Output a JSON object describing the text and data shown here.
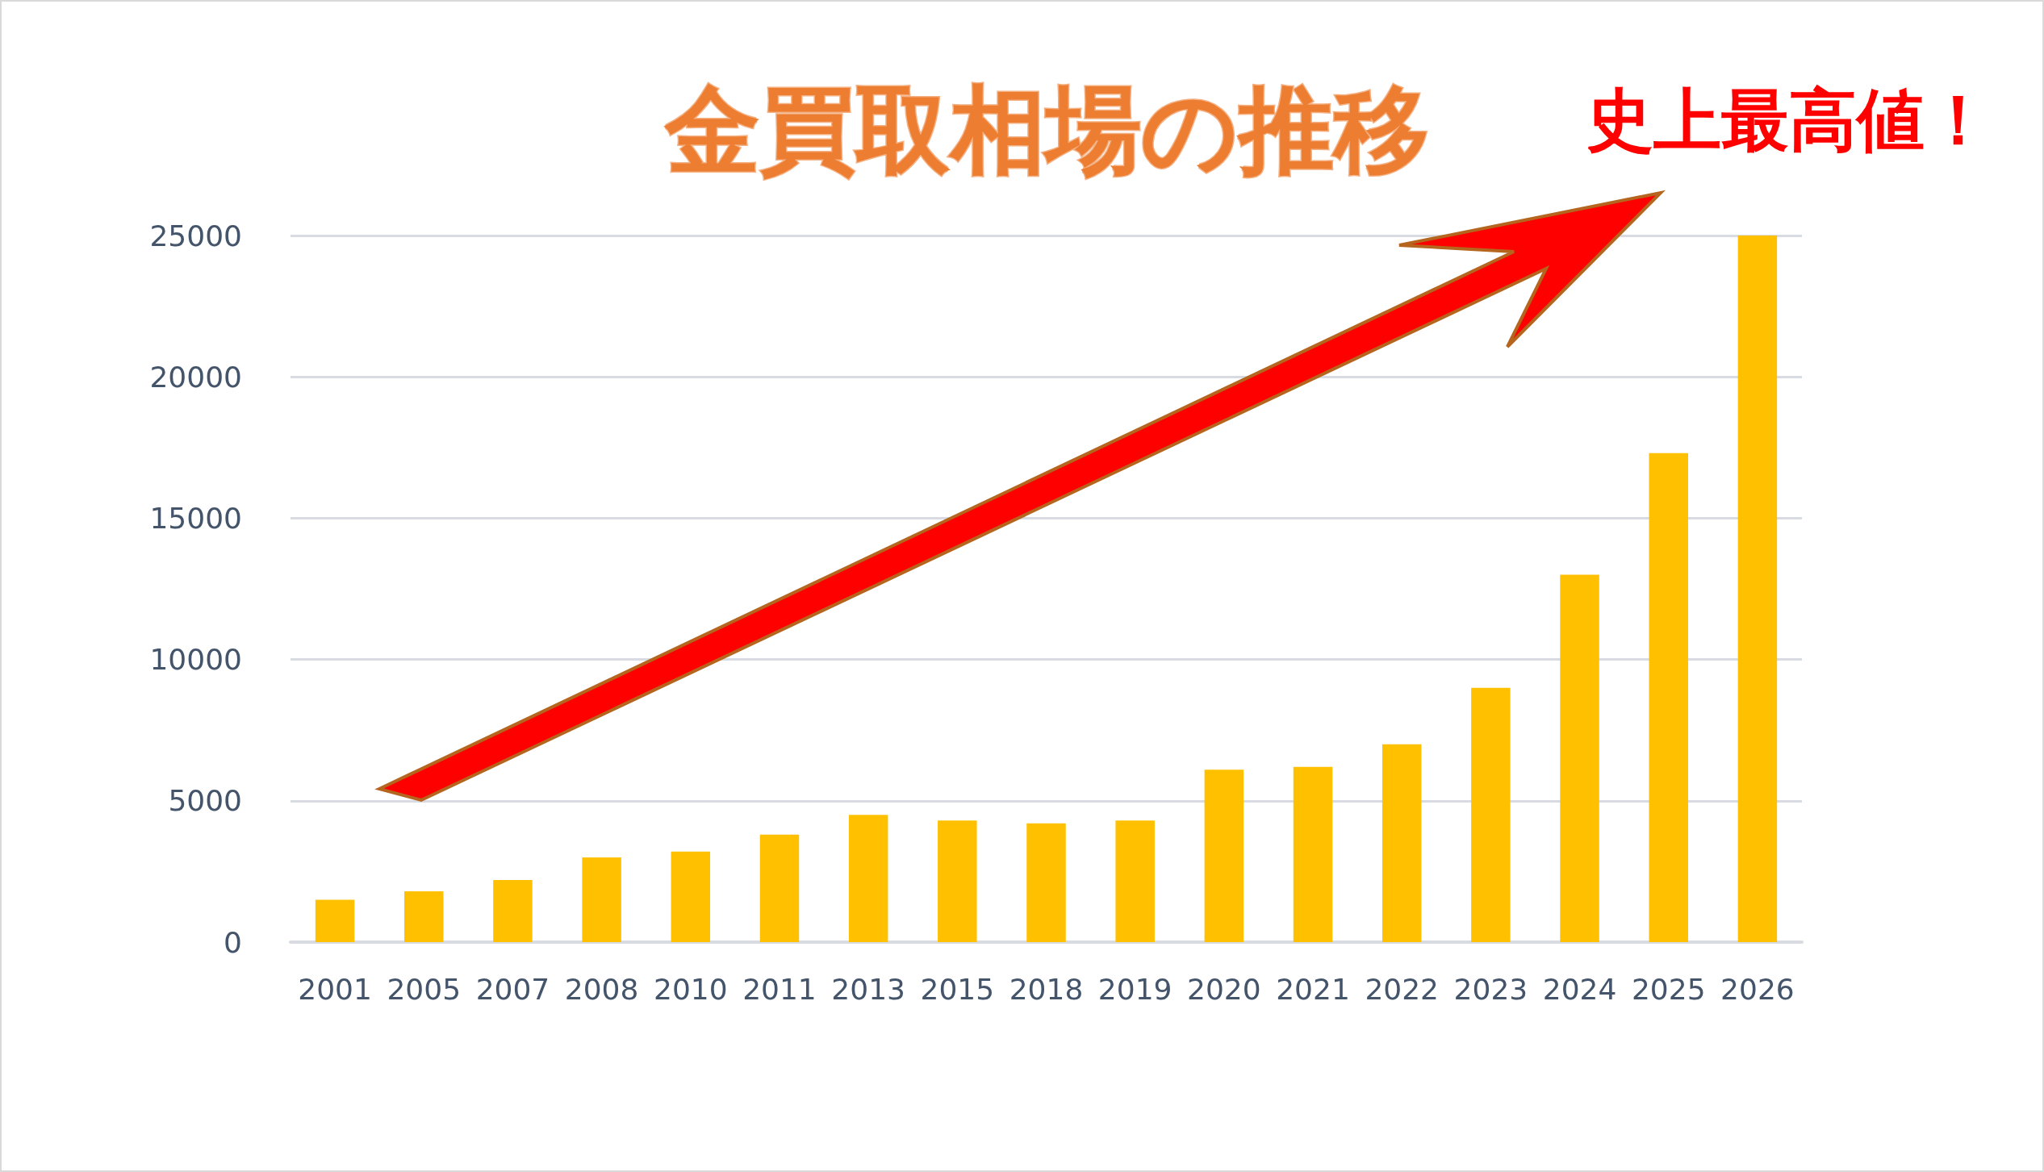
{
  "chart_data": {
    "type": "bar",
    "title": "金買取相場の推移",
    "annotations": [
      "史上最高値！"
    ],
    "categories": [
      "2001",
      "2005",
      "2007",
      "2008",
      "2010",
      "2011",
      "2013",
      "2015",
      "2018",
      "2019",
      "2020",
      "2021",
      "2022",
      "2023",
      "2024",
      "2025",
      "2026"
    ],
    "values": [
      1500,
      1800,
      2200,
      3000,
      3200,
      3800,
      4500,
      4300,
      4200,
      4300,
      6100,
      6200,
      7000,
      9000,
      13000,
      17300,
      25000
    ],
    "color": "#ffc000",
    "ylim": [
      0,
      25000
    ],
    "yticks": [
      0,
      5000,
      10000,
      15000,
      20000,
      25000
    ],
    "grid": "y"
  }
}
